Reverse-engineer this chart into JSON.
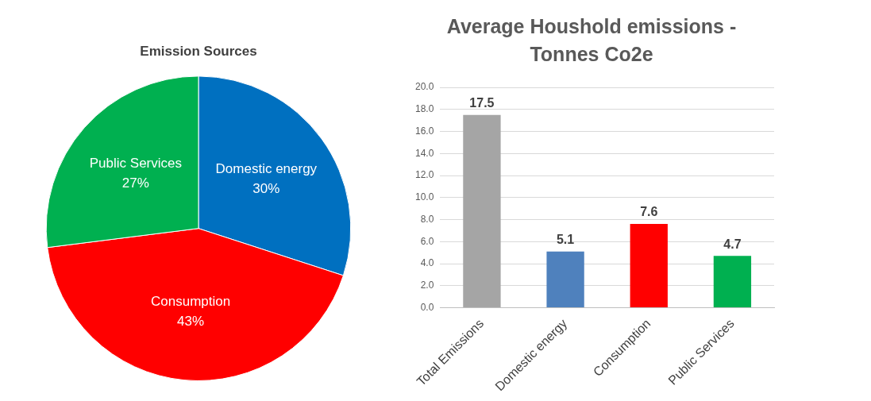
{
  "chart_data": [
    {
      "type": "pie",
      "title": "Emission Sources",
      "categories": [
        "Domestic energy",
        "Consumption",
        "Public Services"
      ],
      "values": [
        30,
        43,
        27
      ],
      "colors": [
        "#0070c0",
        "#ff0000",
        "#00b050"
      ],
      "value_labels": [
        "30%",
        "43%",
        "27%"
      ],
      "legend": false
    },
    {
      "type": "bar",
      "title": "Average Houshold emissions - Tonnes Co2e",
      "categories": [
        "Total Emissions",
        "Domestic energy",
        "Consumption",
        "Public Services"
      ],
      "values": [
        17.5,
        5.1,
        7.6,
        4.7
      ],
      "colors": [
        "#a5a5a5",
        "#4f81bd",
        "#ff0000",
        "#00b050"
      ],
      "ylim": [
        0,
        20
      ],
      "yticks": [
        {
          "value": 0,
          "label": "0.0"
        },
        {
          "value": 2,
          "label": "2.0"
        },
        {
          "value": 4,
          "label": "4.0"
        },
        {
          "value": 6,
          "label": "6.0"
        },
        {
          "value": 8,
          "label": "8.0"
        },
        {
          "value": 10,
          "label": "10.0"
        },
        {
          "value": 12,
          "label": "12.0"
        },
        {
          "value": 14,
          "label": "14.0"
        },
        {
          "value": 16,
          "label": "16.0"
        },
        {
          "value": 18,
          "label": "18.0"
        },
        {
          "value": 20,
          "label": "20.0"
        }
      ],
      "grid": "y",
      "data_labels": true,
      "legend": false
    }
  ]
}
